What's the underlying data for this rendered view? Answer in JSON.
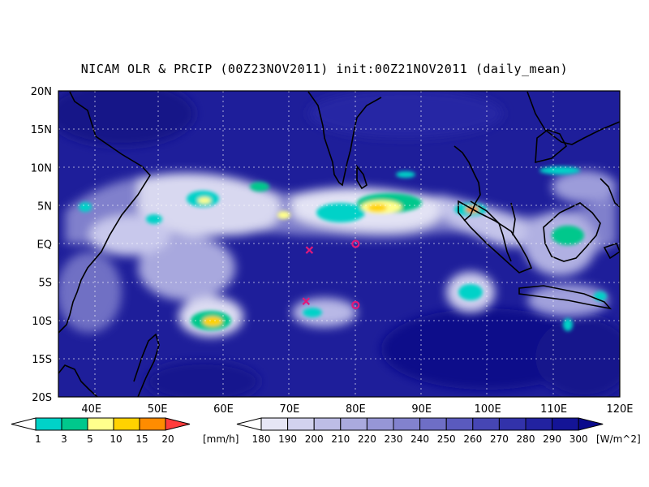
{
  "title": "NICAM OLR & PRCIP (00Z23NOV2011) init:00Z21NOV2011 (daily_mean)",
  "lat_labels": [
    "20N",
    "15N",
    "10N",
    "5N",
    "EQ",
    "5S",
    "10S",
    "15S",
    "20S"
  ],
  "lon_labels": [
    "40E",
    "50E",
    "60E",
    "70E",
    "80E",
    "90E",
    "100E",
    "110E",
    "120E"
  ],
  "map_extent": {
    "lon": [
      35,
      120
    ],
    "lat": [
      -20,
      20
    ]
  },
  "precip_colorbar": {
    "labels": [
      "1",
      "3",
      "5",
      "10",
      "15",
      "20"
    ],
    "unit": "[mm/h]",
    "colors": [
      "#00d2c8",
      "#00c88c",
      "#ffff8c",
      "#ffd200",
      "#ff8c00",
      "#ff3c3c"
    ]
  },
  "olr_colorbar": {
    "labels": [
      "180",
      "190",
      "200",
      "210",
      "220",
      "230",
      "240",
      "250",
      "260",
      "270",
      "280",
      "290",
      "300"
    ],
    "unit": "[W/m^2]",
    "colors": [
      "#ffffff",
      "#e6e6f5",
      "#d2d2ee",
      "#bdbde6",
      "#aaaade",
      "#9696d6",
      "#8282ce",
      "#6e6ec6",
      "#5a5abe",
      "#4646b4",
      "#3232aa",
      "#2222a0",
      "#141496",
      "#0a0a8c"
    ]
  },
  "markers": [
    {
      "type": "cross",
      "lon": 73,
      "lat": -0.8,
      "color": "#e0197a"
    },
    {
      "type": "circle",
      "lon": 80,
      "lat": 0,
      "color": "#e0197a"
    },
    {
      "type": "cross",
      "lon": 72.5,
      "lat": -7.5,
      "color": "#e0197a"
    },
    {
      "type": "circle",
      "lon": 80,
      "lat": -8,
      "color": "#e0197a"
    }
  ]
}
